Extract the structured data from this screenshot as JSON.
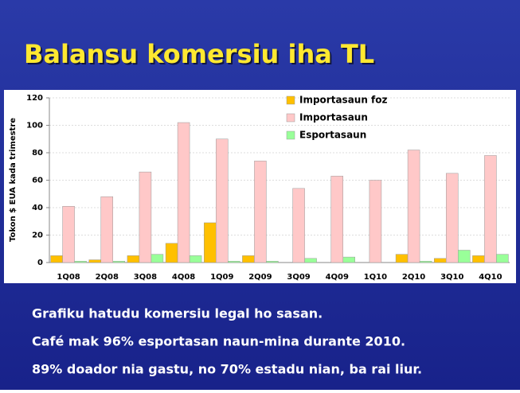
{
  "chart_data": {
    "type": "bar",
    "title": "Balansu komersiu iha TL",
    "y_label": "Tokon $ EUA kada trimestre",
    "categories": [
      "1Q08",
      "2Q08",
      "3Q08",
      "4Q08",
      "1Q09",
      "2Q09",
      "3Q09",
      "4Q09",
      "1Q10",
      "2Q10",
      "3Q10",
      "4Q10"
    ],
    "series": [
      {
        "name": "Importasaun foz",
        "color": "#ffc000",
        "values": [
          5,
          2,
          5,
          14,
          29,
          5,
          0,
          0,
          0,
          6,
          3,
          5
        ]
      },
      {
        "name": "Importasaun",
        "color": "#ffc8c8",
        "values": [
          41,
          48,
          66,
          102,
          90,
          74,
          54,
          63,
          60,
          82,
          65,
          78
        ]
      },
      {
        "name": "Esportasaun",
        "color": "#99ff99",
        "values": [
          1,
          1,
          6,
          5,
          1,
          1,
          3,
          4,
          0,
          1,
          9,
          6
        ]
      }
    ],
    "ylim": [
      0,
      120
    ],
    "yticks": [
      0,
      20,
      40,
      60,
      80,
      100,
      120
    ],
    "grid": true,
    "legend": "top-right",
    "notes": [
      "Grafiku hatudu komersiu legal ho sasan.",
      "Café mak 96% esportasan naun-mina durante 2010.",
      "89% doador nia gastu, no 70% estadu nian, ba rai liur."
    ]
  }
}
